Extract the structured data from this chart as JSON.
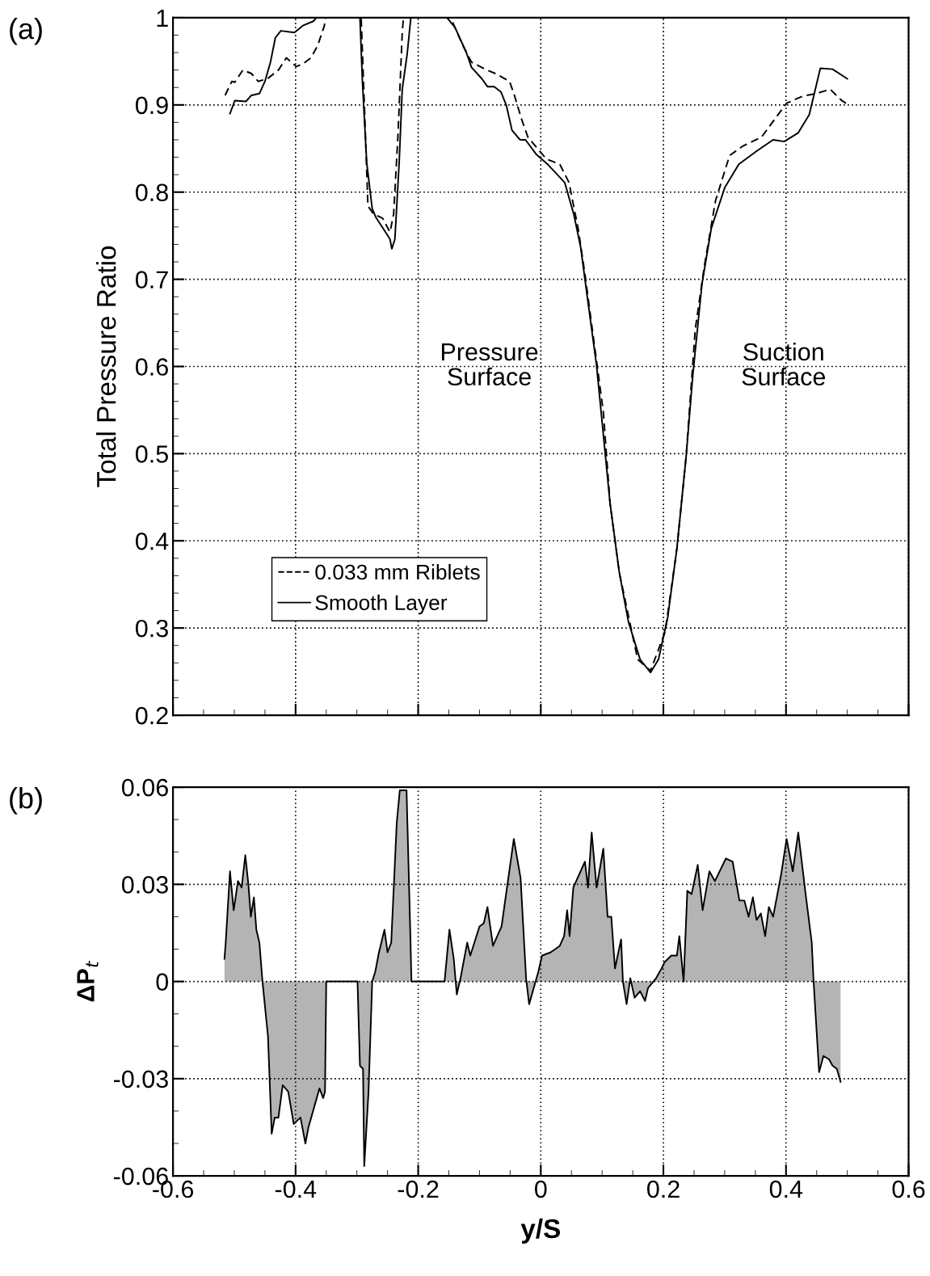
{
  "chart_data": [
    {
      "type": "line",
      "ylabel": "Total Pressure Ratio",
      "xlim": [
        -0.6,
        0.6
      ],
      "ylim": [
        0.2,
        1
      ],
      "xticks": [
        {
          "value": -0.6,
          "label": null
        },
        {
          "value": -0.4,
          "label": null
        },
        {
          "value": -0.2,
          "label": null
        },
        {
          "value": 0,
          "label": null
        },
        {
          "value": 0.2,
          "label": null
        },
        {
          "value": 0.4,
          "label": null
        },
        {
          "value": 0.6,
          "label": null
        }
      ],
      "yticks": [
        0.2,
        0.3,
        0.4,
        0.5,
        0.6,
        0.7,
        0.8,
        0.9,
        1
      ],
      "tick_labels": "y",
      "grid": true,
      "legend": "bottom left",
      "annotations": [
        "(a)",
        "Pressure\nSurface",
        "Suction\nSurface"
      ],
      "series": [
        {
          "name": "0.033 mm Riblets",
          "color": "#000000",
          "line_style": "dashed",
          "x": [
            -0.515,
            -0.504,
            -0.499,
            -0.486,
            -0.472,
            -0.461,
            -0.446,
            -0.428,
            -0.415,
            -0.399,
            -0.388,
            -0.375,
            -0.364,
            -0.353,
            -0.351,
            -0.293,
            -0.286,
            -0.282,
            -0.273,
            -0.258,
            -0.246,
            -0.24,
            -0.233,
            -0.226,
            -0.224,
            -0.147,
            -0.127,
            -0.113,
            -0.091,
            -0.074,
            -0.051,
            -0.043,
            -0.032,
            -0.021,
            0.009,
            0.031,
            0.046,
            0.061,
            0.072,
            0.087,
            0.102,
            0.113,
            0.128,
            0.158,
            0.179,
            0.203,
            0.222,
            0.237,
            0.252,
            0.267,
            0.285,
            0.308,
            0.33,
            0.36,
            0.382,
            0.401,
            0.427,
            0.449,
            0.472,
            0.491,
            0.502
          ],
          "values": [
            0.911,
            0.927,
            0.926,
            0.94,
            0.936,
            0.927,
            0.93,
            0.94,
            0.954,
            0.944,
            0.947,
            0.954,
            0.968,
            0.991,
            1.0,
            1.0,
            0.865,
            0.784,
            0.775,
            0.77,
            0.754,
            0.775,
            0.865,
            0.983,
            1.0,
            1.0,
            0.968,
            0.949,
            0.941,
            0.936,
            0.927,
            0.911,
            0.885,
            0.863,
            0.838,
            0.832,
            0.811,
            0.758,
            0.706,
            0.627,
            0.548,
            0.443,
            0.364,
            0.264,
            0.251,
            0.296,
            0.391,
            0.496,
            0.643,
            0.716,
            0.79,
            0.842,
            0.853,
            0.863,
            0.884,
            0.902,
            0.91,
            0.913,
            0.918,
            0.905,
            0.9
          ]
        },
        {
          "name": "Smooth Layer",
          "color": "#000000",
          "line_style": "solid",
          "x": [
            -0.507,
            -0.499,
            -0.481,
            -0.472,
            -0.459,
            -0.45,
            -0.441,
            -0.433,
            -0.424,
            -0.402,
            -0.388,
            -0.371,
            -0.366,
            -0.295,
            -0.291,
            -0.284,
            -0.275,
            -0.269,
            -0.255,
            -0.246,
            -0.243,
            -0.238,
            -0.231,
            -0.226,
            -0.218,
            -0.212,
            -0.153,
            -0.14,
            -0.122,
            -0.113,
            -0.096,
            -0.087,
            -0.076,
            -0.065,
            -0.056,
            -0.047,
            -0.034,
            -0.025,
            -0.007,
            0.011,
            0.039,
            0.054,
            0.065,
            0.076,
            0.091,
            0.102,
            0.113,
            0.128,
            0.143,
            0.162,
            0.179,
            0.192,
            0.207,
            0.222,
            0.237,
            0.248,
            0.263,
            0.278,
            0.3,
            0.323,
            0.352,
            0.379,
            0.397,
            0.42,
            0.438,
            0.456,
            0.476,
            0.5
          ],
          "values": [
            0.89,
            0.905,
            0.904,
            0.911,
            0.913,
            0.927,
            0.949,
            0.977,
            0.985,
            0.983,
            0.991,
            0.996,
            1.0,
            1.0,
            0.927,
            0.834,
            0.781,
            0.771,
            0.756,
            0.746,
            0.735,
            0.746,
            0.834,
            0.918,
            0.958,
            1.0,
            1.0,
            0.989,
            0.961,
            0.943,
            0.93,
            0.921,
            0.921,
            0.915,
            0.899,
            0.871,
            0.86,
            0.86,
            0.843,
            0.832,
            0.811,
            0.774,
            0.737,
            0.679,
            0.601,
            0.522,
            0.443,
            0.364,
            0.307,
            0.264,
            0.249,
            0.264,
            0.312,
            0.391,
            0.496,
            0.59,
            0.695,
            0.758,
            0.805,
            0.832,
            0.847,
            0.86,
            0.858,
            0.868,
            0.889,
            0.942,
            0.941,
            0.93
          ]
        }
      ]
    },
    {
      "type": "area",
      "xlabel": "y/S",
      "ylabel": "ΔP$_{t}$",
      "xlim": [
        -0.6,
        0.6
      ],
      "ylim": [
        -0.06,
        0.06
      ],
      "xticks": [
        {
          "value": -0.6,
          "label": "-0.6"
        },
        {
          "value": -0.4,
          "label": "-0.4"
        },
        {
          "value": -0.2,
          "label": "-0.2"
        },
        0,
        0.2,
        0.4,
        0.6
      ],
      "yticks": [
        {
          "value": -0.06,
          "label": "-0.06"
        },
        {
          "value": -0.03,
          "label": "-0.03"
        },
        0,
        0.03,
        0.06
      ],
      "grid": true,
      "annotations": [
        "(b)"
      ],
      "series": [
        {
          "color": "#b4b4b4",
          "x": [
            -0.516,
            -0.514,
            -0.507,
            -0.501,
            -0.494,
            -0.488,
            -0.482,
            -0.477,
            -0.473,
            -0.468,
            -0.464,
            -0.459,
            -0.454,
            -0.445,
            -0.439,
            -0.434,
            -0.428,
            -0.421,
            -0.412,
            -0.403,
            -0.392,
            -0.384,
            -0.379,
            -0.37,
            -0.361,
            -0.355,
            -0.352,
            -0.35,
            -0.299,
            -0.295,
            -0.29,
            -0.288,
            -0.281,
            -0.275,
            -0.27,
            -0.264,
            -0.255,
            -0.25,
            -0.244,
            -0.235,
            -0.23,
            -0.219,
            -0.213,
            -0.211,
            -0.157,
            -0.149,
            -0.142,
            -0.137,
            -0.131,
            -0.12,
            -0.115,
            -0.1,
            -0.093,
            -0.087,
            -0.078,
            -0.071,
            -0.064,
            -0.044,
            -0.033,
            -0.024,
            -0.019,
            -0.007,
            -0.004,
            0.002,
            0.016,
            0.031,
            0.038,
            0.043,
            0.047,
            0.053,
            0.072,
            0.077,
            0.083,
            0.091,
            0.102,
            0.109,
            0.115,
            0.121,
            0.131,
            0.134,
            0.14,
            0.146,
            0.153,
            0.162,
            0.17,
            0.175,
            0.188,
            0.197,
            0.202,
            0.213,
            0.222,
            0.226,
            0.233,
            0.239,
            0.246,
            0.256,
            0.264,
            0.275,
            0.284,
            0.302,
            0.313,
            0.324,
            0.332,
            0.339,
            0.346,
            0.352,
            0.359,
            0.366,
            0.372,
            0.379,
            0.392,
            0.401,
            0.411,
            0.42,
            0.432,
            0.442,
            0.445,
            0.454,
            0.461,
            0.47,
            0.476,
            0.483,
            0.489
          ],
          "values": [
            0.007,
            0.012,
            0.034,
            0.022,
            0.031,
            0.029,
            0.039,
            0.03,
            0.02,
            0.026,
            0.016,
            0.012,
            0,
            -0.017,
            -0.047,
            -0.042,
            -0.042,
            -0.032,
            -0.034,
            -0.044,
            -0.042,
            -0.05,
            -0.045,
            -0.039,
            -0.033,
            -0.036,
            -0.034,
            0,
            0,
            -0.026,
            -0.027,
            -0.057,
            -0.034,
            0,
            0.003,
            0.009,
            0.016,
            0.009,
            0.012,
            0.049,
            0.059,
            0.059,
            0.016,
            0,
            0,
            0.016,
            0.007,
            -0.004,
            0.001,
            0.012,
            0.008,
            0.017,
            0.018,
            0.023,
            0.011,
            0.014,
            0.017,
            0.044,
            0.032,
            0.001,
            -0.007,
            0.001,
            0.003,
            0.008,
            0.009,
            0.011,
            0.014,
            0.022,
            0.014,
            0.029,
            0.037,
            0.029,
            0.046,
            0.029,
            0.041,
            0.02,
            0.02,
            0.004,
            0.013,
            0,
            -0.007,
            0.001,
            -0.005,
            -0.003,
            -0.006,
            -0.002,
            0.001,
            0.004,
            0.006,
            0.008,
            0.008,
            0.014,
            0,
            0.028,
            0.027,
            0.036,
            0.022,
            0.034,
            0.031,
            0.038,
            0.037,
            0.025,
            0.025,
            0.02,
            0.026,
            0.019,
            0.021,
            0.014,
            0.023,
            0.02,
            0.033,
            0.044,
            0.034,
            0.046,
            0.027,
            0.012,
            0,
            -0.028,
            -0.023,
            -0.024,
            -0.026,
            -0.027,
            -0.031
          ]
        }
      ]
    }
  ]
}
